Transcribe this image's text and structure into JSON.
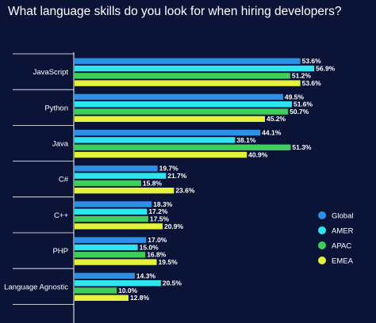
{
  "chart_data": {
    "type": "bar",
    "orientation": "horizontal",
    "title": "What language skills do you look for when hiring developers?",
    "xlabel": "",
    "ylabel": "",
    "xlim": [
      0,
      60
    ],
    "grid": false,
    "legend_position": "right",
    "categories": [
      "JavaScript",
      "Python",
      "Java",
      "C#",
      "C++",
      "PHP",
      "Language Agnostic"
    ],
    "series": [
      {
        "name": "Global",
        "color": "#2e8fe6",
        "values": [
          53.6,
          49.5,
          44.1,
          19.7,
          18.3,
          17.0,
          14.3
        ]
      },
      {
        "name": "AMER",
        "color": "#2ee6f0",
        "values": [
          56.9,
          51.6,
          38.1,
          21.7,
          17.2,
          15.0,
          20.5
        ]
      },
      {
        "name": "APAC",
        "color": "#3ecf5a",
        "values": [
          51.2,
          50.7,
          51.3,
          15.8,
          17.5,
          16.8,
          10.0
        ]
      },
      {
        "name": "EMEA",
        "color": "#e4f23a",
        "values": [
          53.6,
          45.2,
          40.9,
          23.6,
          20.9,
          19.5,
          12.8
        ]
      }
    ],
    "value_suffix": "%"
  },
  "colors": {
    "background": "#0b1437",
    "text": "#ffffff",
    "axis": "#ffffff"
  }
}
